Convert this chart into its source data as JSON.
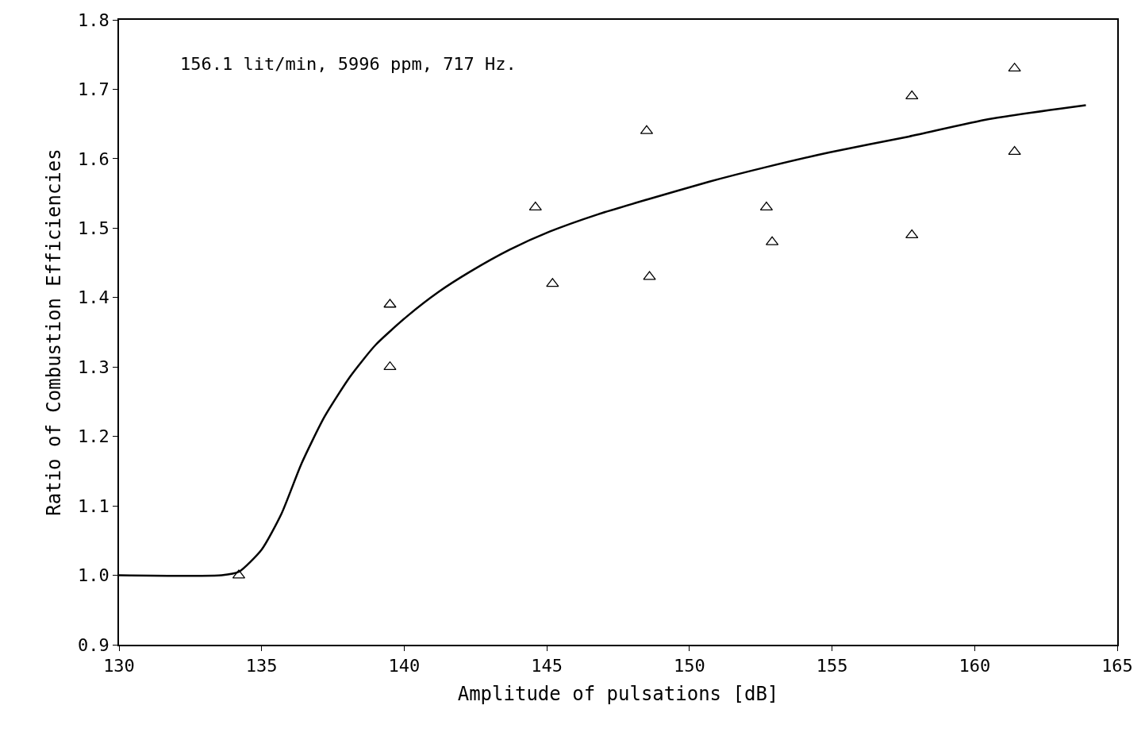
{
  "chart_data": {
    "type": "scatter",
    "xlabel": "Amplitude of pulsations [dB]",
    "ylabel": "Ratio of Combustion Efficiencies",
    "annotations": [
      "156.1 lit/min, 5996 ppm, 717 Hz."
    ],
    "xlim": [
      130,
      165
    ],
    "xticks": [
      130,
      135,
      140,
      145,
      150,
      155,
      160,
      165
    ],
    "ylim": [
      0.9,
      1.8
    ],
    "yticks": [
      {
        "value": 0.9,
        "label": "0.9"
      },
      {
        "value": 1.0,
        "label": "1.0"
      },
      1.1,
      1.2,
      1.3,
      1.4,
      1.5,
      1.6,
      1.7,
      1.8
    ],
    "series": [
      {
        "marker": "triangle",
        "color": "#000000",
        "x": [
          134.2,
          139.5,
          139.5,
          144.6,
          145.2,
          148.5,
          148.6,
          152.7,
          152.9,
          157.8,
          157.8,
          161.4,
          161.4
        ],
        "values": [
          1.0,
          1.39,
          1.3,
          1.53,
          1.42,
          1.64,
          1.43,
          1.53,
          1.48,
          1.69,
          1.49,
          1.73,
          1.61
        ]
      },
      {
        "type": "line",
        "marker": "none",
        "color": "#000000",
        "x": [
          130,
          133.6,
          134.2,
          135.0,
          135.7,
          136.4,
          137.2,
          138.1,
          139.0,
          140.1,
          141.2,
          142.3,
          143.7,
          145.1,
          146.8,
          148.5,
          150.7,
          152.7,
          154.9,
          157.7,
          160.5,
          163.9
        ],
        "values": [
          1.0,
          1.0,
          1.005,
          1.037,
          1.089,
          1.161,
          1.228,
          1.286,
          1.332,
          1.373,
          1.408,
          1.437,
          1.469,
          1.495,
          1.52,
          1.541,
          1.567,
          1.588,
          1.609,
          1.632,
          1.657,
          1.677
        ]
      }
    ]
  }
}
